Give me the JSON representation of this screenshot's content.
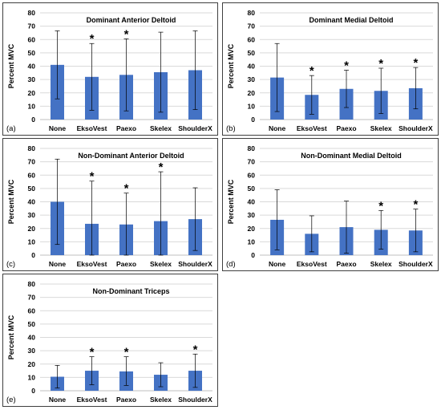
{
  "chart_data": [
    {
      "type": "bar",
      "panel_label": "(a)",
      "title": "Dominant Anterior Deltoid",
      "ylabel": "Percent MVC",
      "ylim": [
        0,
        80
      ],
      "yticks": [
        "0",
        "10",
        "20",
        "30",
        "40",
        "50",
        "60",
        "70",
        "80"
      ],
      "categories": [
        "None",
        "EksoVest",
        "Paexo",
        "Skelex",
        "ShoulderX"
      ],
      "values": [
        41,
        32,
        33.5,
        35.5,
        37
      ],
      "error_upper": [
        66.5,
        57,
        60.5,
        65.5,
        66.5
      ],
      "error_lower": [
        15.5,
        7,
        6.5,
        5.5,
        7.5
      ],
      "significance": [
        "",
        "*",
        "*",
        "",
        ""
      ],
      "bar_color": "#4472c4"
    },
    {
      "type": "bar",
      "panel_label": "(b)",
      "title": "Dominant Medial Deltoid",
      "ylabel": "Percent MVC",
      "ylim": [
        0,
        80
      ],
      "yticks": [
        "0",
        "10",
        "20",
        "30",
        "40",
        "50",
        "60",
        "70",
        "80"
      ],
      "categories": [
        "None",
        "EksoVest",
        "Paexo",
        "Skelex",
        "ShoulderX"
      ],
      "values": [
        31.5,
        18.5,
        23,
        21.5,
        23.5
      ],
      "error_upper": [
        57,
        33,
        37,
        38.5,
        39
      ],
      "error_lower": [
        6,
        4,
        9,
        4.5,
        8
      ],
      "significance": [
        "",
        "*",
        "*",
        "*",
        "*"
      ],
      "bar_color": "#4472c4"
    },
    {
      "type": "bar",
      "panel_label": "(c)",
      "title": "Non-Dominant Anterior Deltoid",
      "ylabel": "Percent MVC",
      "ylim": [
        0,
        80
      ],
      "yticks": [
        "0",
        "10",
        "20",
        "30",
        "40",
        "50",
        "60",
        "70",
        "80"
      ],
      "categories": [
        "None",
        "EksoVest",
        "Paexo",
        "Skelex",
        "ShoulderX"
      ],
      "values": [
        40,
        23.5,
        23,
        25.5,
        27
      ],
      "error_upper": [
        72,
        55.5,
        46.5,
        62.5,
        50.5
      ],
      "error_lower": [
        8,
        0,
        0,
        0,
        3.5
      ],
      "significance": [
        "",
        "*",
        "*",
        "*",
        ""
      ],
      "bar_color": "#4472c4"
    },
    {
      "type": "bar",
      "panel_label": "(d)",
      "title": "Non-Dominant Medial Deltoid",
      "ylabel": "Percent MVC",
      "ylim": [
        0,
        80
      ],
      "yticks": [
        "0",
        "10",
        "20",
        "30",
        "40",
        "50",
        "60",
        "70",
        "80"
      ],
      "categories": [
        "None",
        "EksoVest",
        "Paexo",
        "Skelex",
        "ShoulderX"
      ],
      "values": [
        26.5,
        16,
        21,
        19,
        18.5
      ],
      "error_upper": [
        49,
        29.5,
        40.5,
        33.5,
        34.5
      ],
      "error_lower": [
        4,
        2.5,
        1.5,
        4.5,
        2.5
      ],
      "significance": [
        "",
        "",
        "",
        "*",
        "*"
      ],
      "bar_color": "#4472c4"
    },
    {
      "type": "bar",
      "panel_label": "(e)",
      "title": "Non-Dominant Triceps",
      "ylabel": "Percent MVC",
      "ylim": [
        0,
        80
      ],
      "yticks": [
        "0",
        "10",
        "20",
        "30",
        "40",
        "50",
        "60",
        "70",
        "80"
      ],
      "categories": [
        "None",
        "EksoVest",
        "Paexo",
        "Skelex",
        "ShoulderX"
      ],
      "values": [
        10.5,
        15,
        14.5,
        12,
        15
      ],
      "error_upper": [
        19,
        25.5,
        25.5,
        21,
        27.5
      ],
      "error_lower": [
        2,
        4.5,
        4,
        3,
        2.5
      ],
      "significance": [
        "",
        "*",
        "*",
        "",
        "*"
      ],
      "bar_color": "#4472c4"
    }
  ]
}
